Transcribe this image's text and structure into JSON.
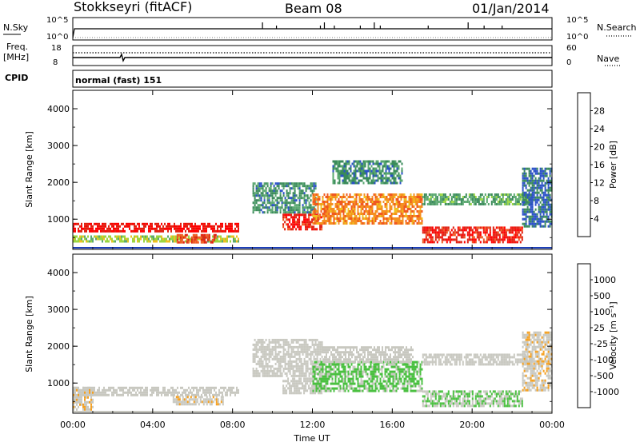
{
  "header": {
    "station": "Stokkseyri (fitACF)",
    "beam": "Beam 08",
    "date": "01/Jan/2014"
  },
  "strip_panels": {
    "nsky_label": "N.Sky",
    "nsky_ticks": [
      "10^5",
      "10^0"
    ],
    "nsearch_label": "N.Search",
    "nsearch_ticks": [
      "10^5",
      "10^0"
    ],
    "freq_label_1": "Freq.",
    "freq_label_2": "[MHz]",
    "freq_ticks": [
      "18",
      "8"
    ],
    "nave_label": "Nave",
    "nave_ticks": [
      "60",
      "0"
    ],
    "cpid_label": "CPID",
    "cpid_text": "normal (fast) 151"
  },
  "colors": {
    "power_scale": [
      "#0a1eff",
      "#2a50c8",
      "#3a8a5a",
      "#5aa870",
      "#9ad640",
      "#f0c020",
      "#f59020",
      "#f05820",
      "#e02010",
      "#ff0000"
    ],
    "velocity_scale": [
      "#1d3fb8",
      "#2f6bd0",
      "#2e8a50",
      "#4ac040",
      "#c8c8c0",
      "#c8c8c0",
      "#f5a020",
      "#f07010",
      "#e83010",
      "#ff0000"
    ]
  },
  "chart_data": [
    {
      "type": "heatmap",
      "panel": "power",
      "ylabel": "Slant Range [km]",
      "y_ticks": [
        "1000",
        "2000",
        "3000",
        "4000"
      ],
      "ylim": [
        180,
        4500
      ],
      "colorbar_label": "Power [dB]",
      "colorbar_ticks": [
        "4",
        "8",
        "12",
        "16",
        "20",
        "24",
        "28"
      ],
      "colorbar_range": [
        0,
        30
      ],
      "regions": [
        {
          "t": [
            0.0,
            8.3
          ],
          "r": [
            650,
            900
          ],
          "v": 27
        },
        {
          "t": [
            0.0,
            8.3
          ],
          "r": [
            420,
            560
          ],
          "v": 14
        },
        {
          "t": [
            5.2,
            7.2
          ],
          "r": [
            400,
            600
          ],
          "v": 24
        },
        {
          "t": [
            9.0,
            12.2
          ],
          "r": [
            1200,
            2000
          ],
          "v": 8
        },
        {
          "t": [
            10.5,
            12.5
          ],
          "r": [
            700,
            1150
          ],
          "v": 26
        },
        {
          "t": [
            12.0,
            17.5
          ],
          "r": [
            900,
            1700
          ],
          "v": 20
        },
        {
          "t": [
            13.0,
            16.5
          ],
          "r": [
            2000,
            2600
          ],
          "v": 8
        },
        {
          "t": [
            17.5,
            23.0
          ],
          "r": [
            1400,
            1700
          ],
          "v": 10
        },
        {
          "t": [
            17.5,
            22.5
          ],
          "r": [
            350,
            800
          ],
          "v": 26
        },
        {
          "t": [
            22.5,
            24.0
          ],
          "r": [
            800,
            2400
          ],
          "v": 6
        }
      ]
    },
    {
      "type": "heatmap",
      "panel": "velocity",
      "ylabel": "Slant Range [km]",
      "xlabel": "Time UT",
      "x_ticks": [
        "00:00",
        "04:00",
        "08:00",
        "12:00",
        "16:00",
        "20:00",
        "00:00"
      ],
      "y_ticks": [
        "1000",
        "2000",
        "3000",
        "4000"
      ],
      "ylim": [
        180,
        4500
      ],
      "colorbar_label": "Velocity [m s⁻¹]",
      "colorbar_ticks": [
        "1000",
        "500",
        "100",
        "25",
        "-25",
        "-100",
        "-500",
        "-1000"
      ],
      "colorbar_range": [
        -1200,
        1200
      ],
      "regions": [
        {
          "t": [
            0.0,
            8.3
          ],
          "r": [
            650,
            900
          ],
          "v": 0
        },
        {
          "t": [
            0.0,
            1.0
          ],
          "r": [
            300,
            900
          ],
          "v": 150
        },
        {
          "t": [
            5.0,
            7.5
          ],
          "r": [
            400,
            650
          ],
          "v": 150
        },
        {
          "t": [
            9.0,
            12.5
          ],
          "r": [
            1200,
            2200
          ],
          "v": 0
        },
        {
          "t": [
            10.5,
            12.5
          ],
          "r": [
            700,
            1150
          ],
          "v": 0
        },
        {
          "t": [
            12.0,
            17.5
          ],
          "r": [
            800,
            1600
          ],
          "v": -300
        },
        {
          "t": [
            12.5,
            17.0
          ],
          "r": [
            1600,
            2000
          ],
          "v": 0
        },
        {
          "t": [
            17.5,
            23.0
          ],
          "r": [
            1500,
            1800
          ],
          "v": 0
        },
        {
          "t": [
            17.5,
            22.5
          ],
          "r": [
            350,
            800
          ],
          "v": -250
        },
        {
          "t": [
            22.5,
            24.0
          ],
          "r": [
            800,
            2400
          ],
          "v": 150
        }
      ]
    }
  ]
}
